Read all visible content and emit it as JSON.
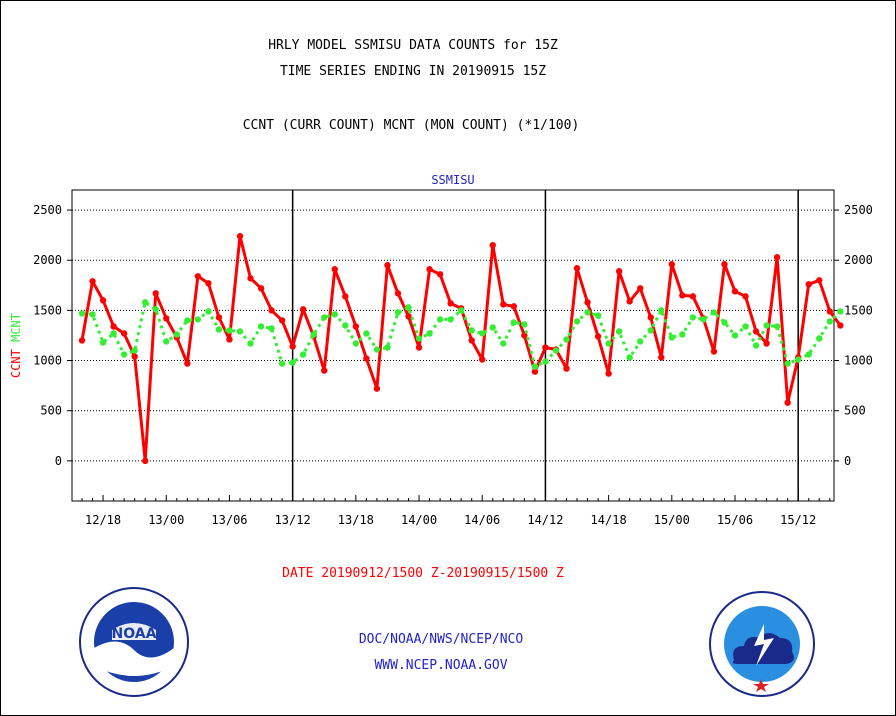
{
  "title_line1": "HRLY MODEL SSMISU DATA COUNTS for 15Z",
  "title_line2": "TIME SERIES ENDING IN 20190915 15Z",
  "subtitle": "CCNT (CURR COUNT) MCNT (MON COUNT) (*1/100)",
  "date_range": "DATE 20190912/1500 Z-20190915/1500 Z",
  "footer_line1": "DOC/NOAA/NWS/NCEP/NCO",
  "footer_line2": "WWW.NCEP.NOAA.GOV",
  "logos": {
    "left": "NOAA",
    "right": "NATIONAL WEATHER SERVICE"
  },
  "colors": {
    "ccnt": "#ff0000",
    "mcnt": "#33ee33",
    "blue_text": "#2222cc",
    "red_text": "#ff0000"
  },
  "chart_data": {
    "type": "line",
    "title": "SSMISU",
    "ylabel_left": [
      "CCNT",
      "MCNT"
    ],
    "ylim": [
      -400,
      2700
    ],
    "yticks": [
      0,
      500,
      1000,
      1500,
      2000,
      2500
    ],
    "ytick_labels": [
      "0",
      "500",
      "1000",
      "1500",
      "2000",
      "2500"
    ],
    "x_start_hours_from_12_16": 0,
    "x_range_hours": [
      -0.95,
      71.4
    ],
    "xtick_hours": [
      2,
      8,
      14,
      20,
      26,
      32,
      38,
      44,
      50,
      56,
      62,
      68
    ],
    "xtick_labels": [
      "12/18",
      "13/00",
      "13/06",
      "13/12",
      "13/18",
      "14/00",
      "14/06",
      "14/12",
      "14/18",
      "15/00",
      "15/06",
      "15/12"
    ],
    "day_boundaries_hours": [
      20,
      44,
      68
    ],
    "grid": "horizontal-dotted",
    "series": [
      {
        "name": "CCNT",
        "style": "solid",
        "values": [
          1200,
          1790,
          1600,
          1340,
          1270,
          1040,
          0,
          1670,
          1420,
          1230,
          970,
          1840,
          1770,
          1430,
          1210,
          2240,
          1820,
          1720,
          1500,
          1400,
          1140,
          1510,
          1240,
          900,
          1910,
          1640,
          1340,
          1020,
          720,
          1950,
          1670,
          1440,
          1130,
          1910,
          1860,
          1570,
          1520,
          1200,
          1010,
          2150,
          1560,
          1540,
          1250,
          890,
          1130,
          1110,
          920,
          1920,
          1580,
          1240,
          870,
          1890,
          1590,
          1720,
          1430,
          1030,
          1960,
          1650,
          1640,
          1420,
          1090,
          1960,
          1690,
          1640,
          1290,
          1170,
          2030,
          580,
          1030,
          1760,
          1800,
          1490,
          1350
        ]
      },
      {
        "name": "MCNT",
        "style": "dotted",
        "values": [
          1470,
          1460,
          1180,
          1270,
          1060,
          1100,
          1580,
          1510,
          1190,
          1260,
          1400,
          1410,
          1490,
          1310,
          1300,
          1290,
          1170,
          1340,
          1320,
          970,
          980,
          1060,
          1260,
          1430,
          1460,
          1350,
          1170,
          1270,
          1110,
          1130,
          1480,
          1530,
          1220,
          1270,
          1410,
          1410,
          1500,
          1300,
          1270,
          1330,
          1170,
          1380,
          1360,
          940,
          990,
          1100,
          1210,
          1390,
          1480,
          1450,
          1170,
          1290,
          1030,
          1190,
          1300,
          1500,
          1230,
          1260,
          1430,
          1410,
          1480,
          1380,
          1250,
          1340,
          1150,
          1350,
          1340,
          970,
          1010,
          1060,
          1220,
          1390,
          1490
        ]
      }
    ]
  }
}
